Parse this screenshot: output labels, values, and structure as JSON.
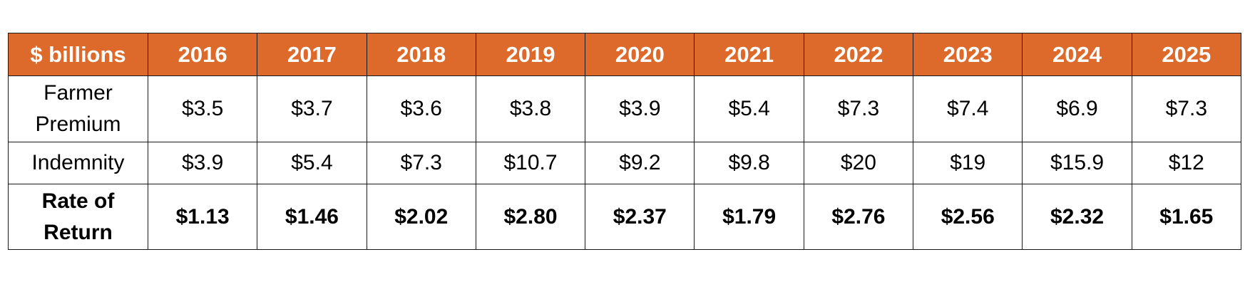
{
  "chart_data": {
    "type": "table",
    "columns": [
      "$ billions",
      "2016",
      "2017",
      "2018",
      "2019",
      "2020",
      "2021",
      "2022",
      "2023",
      "2024",
      "2025"
    ],
    "rows": [
      {
        "label_lines": [
          "Farmer",
          "Premium"
        ],
        "values": [
          "$3.5",
          "$3.7",
          "$3.6",
          "$3.8",
          "$3.9",
          "$5.4",
          "$7.3",
          "$7.4",
          "$6.9",
          "$7.3"
        ]
      },
      {
        "label_lines": [
          "Indemnity"
        ],
        "values": [
          "$3.9",
          "$5.4",
          "$7.3",
          "$10.7",
          "$9.2",
          "$9.8",
          "$20",
          "$19",
          "$15.9",
          "$12"
        ]
      },
      {
        "label_lines": [
          "Rate of",
          "Return"
        ],
        "values": [
          "$1.13",
          "$1.46",
          "$2.02",
          "$2.80",
          "$2.37",
          "$1.79",
          "$2.76",
          "$2.56",
          "$2.32",
          "$1.65"
        ]
      }
    ]
  },
  "colors": {
    "header_background": "#dd6a2b",
    "header_text": "#ffffff",
    "body_text": "#000000",
    "border": "#1a1a1a"
  }
}
